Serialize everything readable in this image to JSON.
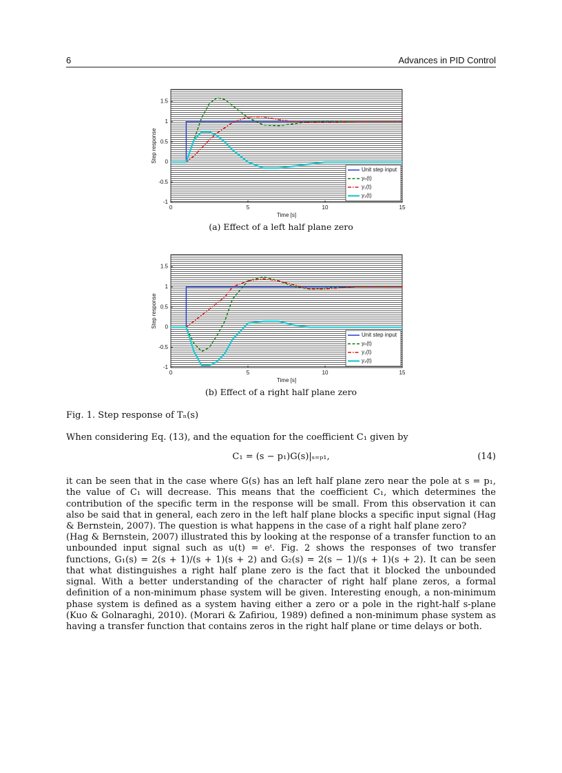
{
  "header": {
    "page_number": "6",
    "running_title": "Advances in PID Control"
  },
  "chart_data": [
    {
      "type": "line",
      "caption": "(a) Effect of a left half plane zero",
      "xlabel": "Time [s]",
      "ylabel": "Step response",
      "x": [
        0,
        1,
        1,
        1.5,
        2,
        2.5,
        3,
        3.5,
        4,
        5,
        6,
        7,
        8,
        9,
        10,
        12,
        15
      ],
      "xlim": [
        0,
        15
      ],
      "xticks": [
        0,
        5,
        10,
        15
      ],
      "ylim": [
        -1,
        1.8
      ],
      "yticks": [
        -1,
        -0.5,
        0,
        0.5,
        1,
        1.5
      ],
      "grid": true,
      "legend": "lower right",
      "series": [
        {
          "name": "Unit step input",
          "color": "#1f3fd0",
          "linestyle": "-",
          "values": [
            0,
            0,
            1,
            1,
            1,
            1,
            1,
            1,
            1,
            1,
            1,
            1,
            1,
            1,
            1,
            1,
            1
          ]
        },
        {
          "name": "yₙ(t)",
          "color": "#0a7a0a",
          "linestyle": "--",
          "values": [
            0,
            0,
            0,
            0.55,
            1.1,
            1.45,
            1.6,
            1.55,
            1.4,
            1.1,
            0.92,
            0.9,
            0.95,
            1,
            1.02,
            1,
            1
          ]
        },
        {
          "name": "y₁(t)",
          "color": "#e01010",
          "linestyle": "-.",
          "values": [
            0,
            0,
            0,
            0.15,
            0.35,
            0.55,
            0.72,
            0.85,
            0.98,
            1.12,
            1.12,
            1.05,
            1,
            0.98,
            0.99,
            1,
            1
          ]
        },
        {
          "name": "y₂(t)",
          "color": "#20c8d0",
          "linestyle": "-",
          "values": [
            0,
            0,
            0,
            0.55,
            0.75,
            0.75,
            0.65,
            0.5,
            0.3,
            0,
            -0.15,
            -0.15,
            -0.1,
            -0.05,
            0,
            0,
            0
          ]
        }
      ]
    },
    {
      "type": "line",
      "caption": "(b) Effect of a right half plane zero",
      "xlabel": "Time [s]",
      "ylabel": "Step response",
      "x": [
        0,
        1,
        1,
        1.5,
        2,
        2.5,
        3,
        3.5,
        4,
        5,
        6,
        7,
        8,
        9,
        10,
        12,
        15
      ],
      "xlim": [
        0,
        15
      ],
      "xticks": [
        0,
        5,
        10,
        15
      ],
      "ylim": [
        -1,
        1.8
      ],
      "yticks": [
        -1,
        -0.5,
        0,
        0.5,
        1,
        1.5
      ],
      "grid": true,
      "legend": "lower right",
      "series": [
        {
          "name": "Unit step input",
          "color": "#1f3fd0",
          "linestyle": "-",
          "values": [
            0,
            0,
            1,
            1,
            1,
            1,
            1,
            1,
            1,
            1,
            1,
            1,
            1,
            1,
            1,
            1,
            1
          ]
        },
        {
          "name": "yₙ(t)",
          "color": "#0a7a0a",
          "linestyle": "--",
          "values": [
            0,
            0,
            0,
            -0.4,
            -0.6,
            -0.5,
            -0.2,
            0.15,
            0.7,
            1.15,
            1.25,
            1.15,
            1,
            0.95,
            0.97,
            1,
            1
          ]
        },
        {
          "name": "y₁(t)",
          "color": "#e01010",
          "linestyle": "-.",
          "values": [
            0,
            0,
            0,
            0.15,
            0.3,
            0.45,
            0.6,
            0.75,
            1,
            1.15,
            1.2,
            1.15,
            1.05,
            0.95,
            0.95,
            1,
            1
          ]
        },
        {
          "name": "y₂(t)",
          "color": "#20c8d0",
          "linestyle": "-",
          "values": [
            0,
            0,
            0,
            -0.6,
            -0.95,
            -0.95,
            -0.85,
            -0.65,
            -0.3,
            0.1,
            0.15,
            0.15,
            0.05,
            0,
            0,
            0,
            0
          ]
        }
      ]
    }
  ],
  "figure_caption": "Fig. 1. Step response of Tₙ(s)",
  "paragraphs": [
    "When considering Eq. (13), and the equation for the coefficient C₁ given by",
    "it can be seen that in the case where G(s) has an left half plane zero near the pole at s = p₁, the value of C₁ will decrease. This means that the coefficient C₁, which determines the contribution of the specific term in the response will be small. From this observation it can also be said that in general, each zero in the left half plane blocks a specific input signal (Hag & Bernstein, 2007). The question is what happens in the case of a right half plane zero?",
    "(Hag & Bernstein, 2007) illustrated this by looking at the response of a transfer function to an unbounded input signal such as u(t) = eᵗ. Fig. 2 shows the responses of two transfer functions, G₁(s) = 2(s + 1)/(s + 1)(s + 2) and G₂(s) = 2(s − 1)/(s + 1)(s + 2). It can be seen that what distinguishes a right half plane zero is the fact that it blocked the unbounded signal. With a better understanding of the character of right half plane zeros, a formal definition of a non-minimum phase system will be given. Interesting enough, a non-minimum phase system is defined as a system having either a zero or a pole in the right-half s-plane (Kuo & Golnaraghi, 2010). (Morari & Zafiriou, 1989) defined a non-minimum phase system as having a transfer function that contains zeros in the right half plane or time delays or both."
  ],
  "equation": {
    "text": "C₁ = (s − p₁)G(s)|ₛ₌ₚ₁,",
    "number": "(14)"
  }
}
